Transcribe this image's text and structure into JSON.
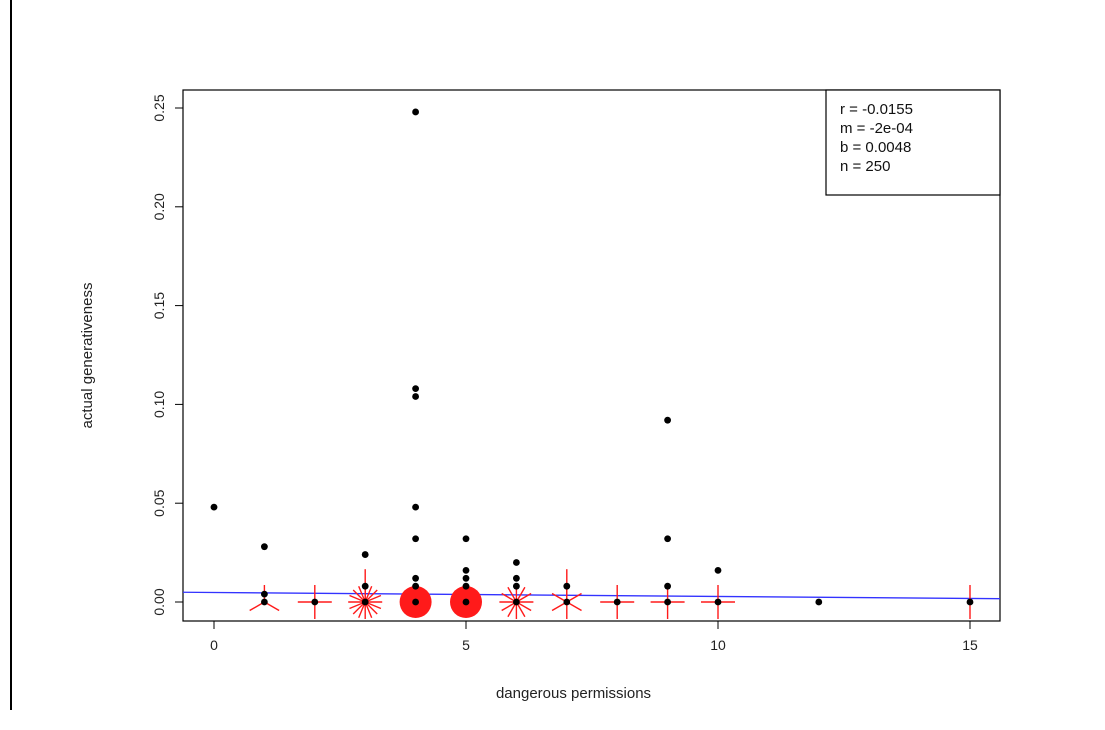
{
  "chart_data": {
    "type": "scatter",
    "xlabel": "dangerous permissions",
    "ylabel": "actual generativeness",
    "xlim": [
      -0.5,
      15.5
    ],
    "ylim": [
      -0.009,
      0.254
    ],
    "x_ticks": [
      "0",
      "5",
      "10",
      "15"
    ],
    "y_ticks": [
      "0.00",
      "0.05",
      "0.10",
      "0.15",
      "0.20",
      "0.25"
    ],
    "grid": false,
    "stats_box": {
      "position": "top-right",
      "lines": [
        "r =  -0.0155",
        "m =  -2e-04",
        "b =  0.0048",
        "n =  250"
      ]
    },
    "regression": {
      "slope": -0.0002,
      "intercept": 0.0048
    },
    "points": [
      {
        "x": 0,
        "y": 0.048
      },
      {
        "x": 1,
        "y": 0.028
      },
      {
        "x": 1,
        "y": 0.004
      },
      {
        "x": 1,
        "y": 0.0
      },
      {
        "x": 2,
        "y": 0.0
      },
      {
        "x": 3,
        "y": 0.024
      },
      {
        "x": 3,
        "y": 0.008
      },
      {
        "x": 3,
        "y": 0.0
      },
      {
        "x": 4,
        "y": 0.248
      },
      {
        "x": 4,
        "y": 0.108
      },
      {
        "x": 4,
        "y": 0.104
      },
      {
        "x": 4,
        "y": 0.048
      },
      {
        "x": 4,
        "y": 0.032
      },
      {
        "x": 4,
        "y": 0.012
      },
      {
        "x": 4,
        "y": 0.008
      },
      {
        "x": 4,
        "y": 0.0
      },
      {
        "x": 5,
        "y": 0.032
      },
      {
        "x": 5,
        "y": 0.016
      },
      {
        "x": 5,
        "y": 0.012
      },
      {
        "x": 5,
        "y": 0.008
      },
      {
        "x": 5,
        "y": 0.0
      },
      {
        "x": 6,
        "y": 0.02
      },
      {
        "x": 6,
        "y": 0.012
      },
      {
        "x": 6,
        "y": 0.008
      },
      {
        "x": 6,
        "y": 0.0
      },
      {
        "x": 7,
        "y": 0.008
      },
      {
        "x": 7,
        "y": 0.0
      },
      {
        "x": 8,
        "y": 0.0
      },
      {
        "x": 9,
        "y": 0.092
      },
      {
        "x": 9,
        "y": 0.032
      },
      {
        "x": 9,
        "y": 0.008
      },
      {
        "x": 9,
        "y": 0.0
      },
      {
        "x": 10,
        "y": 0.016
      },
      {
        "x": 10,
        "y": 0.0
      },
      {
        "x": 12,
        "y": 0.0
      },
      {
        "x": 15,
        "y": 0.0
      }
    ],
    "sunflowers": [
      {
        "x": 1,
        "y": 0.0,
        "petals": 3
      },
      {
        "x": 2,
        "y": 0.0,
        "petals": 4
      },
      {
        "x": 3,
        "y": 0.0,
        "petals": 16
      },
      {
        "x": 3,
        "y": 0.008,
        "petals": 2
      },
      {
        "x": 4,
        "y": 0.0,
        "filled": true
      },
      {
        "x": 5,
        "y": 0.0,
        "filled": true
      },
      {
        "x": 6,
        "y": 0.0,
        "petals": 12
      },
      {
        "x": 7,
        "y": 0.0,
        "petals": 6
      },
      {
        "x": 7,
        "y": 0.008,
        "petals": 2
      },
      {
        "x": 8,
        "y": 0.0,
        "petals": 4
      },
      {
        "x": 9,
        "y": 0.0,
        "petals": 4
      },
      {
        "x": 10,
        "y": 0.0,
        "petals": 4
      },
      {
        "x": 15,
        "y": 0.0,
        "petals": 2
      }
    ],
    "colors": {
      "points": "#000000",
      "sunflower": "#ff1a1a",
      "regression": "#3333ff"
    }
  }
}
